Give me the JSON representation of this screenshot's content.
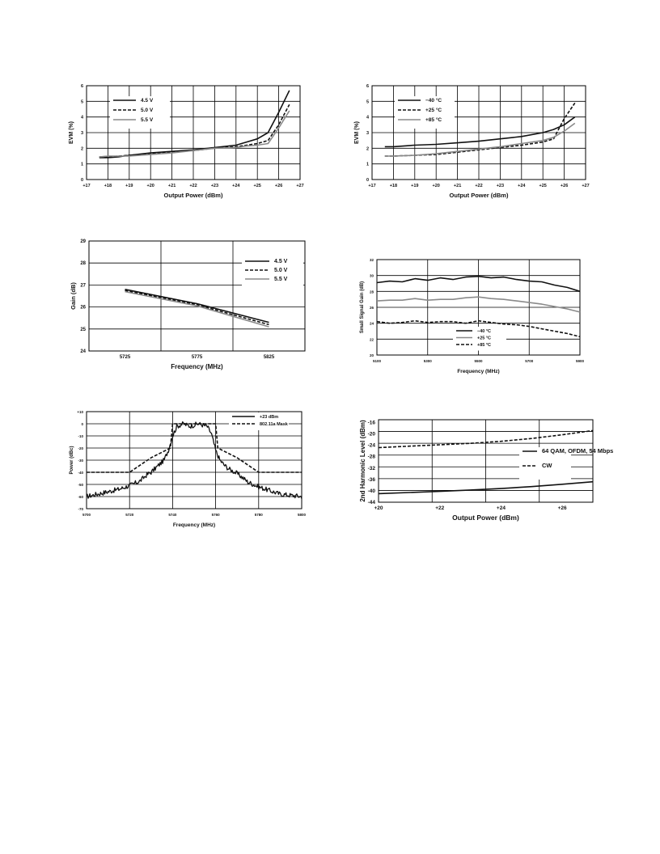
{
  "colors": {
    "black": "#111111",
    "gray": "#8a8a8a",
    "grid": "#000000"
  },
  "charts": [
    {
      "type": "line",
      "xlabel": "Output Power (dBm)",
      "ylabel": "EVM (%)",
      "xlim": [
        17,
        27
      ],
      "ylim": [
        0,
        6
      ],
      "xticks": [
        "+17",
        "+18",
        "+19",
        "+20",
        "+21",
        "+22",
        "+23",
        "+24",
        "+25",
        "+26",
        "+27"
      ],
      "yticks": [
        "0",
        "1",
        "2",
        "3",
        "4",
        "5",
        "6"
      ],
      "legend_position": "upper-left",
      "series": [
        {
          "name": "4.5 V",
          "style": "solid",
          "color": "#111111",
          "x": [
            17.6,
            18.0,
            18.5,
            19.0,
            20.0,
            21.0,
            22.0,
            23.0,
            24.0,
            24.5,
            25.0,
            25.5,
            26.0,
            26.5
          ],
          "y": [
            1.4,
            1.4,
            1.45,
            1.55,
            1.7,
            1.8,
            1.9,
            2.05,
            2.2,
            2.4,
            2.6,
            3.0,
            4.3,
            5.7
          ]
        },
        {
          "name": "5.0 V",
          "style": "dashed",
          "color": "#111111",
          "x": [
            17.6,
            18.0,
            18.5,
            19.0,
            20.0,
            21.0,
            22.0,
            23.0,
            24.0,
            24.5,
            25.0,
            25.5,
            26.0,
            26.5
          ],
          "y": [
            1.45,
            1.45,
            1.5,
            1.55,
            1.65,
            1.75,
            1.85,
            2.0,
            2.1,
            2.2,
            2.3,
            2.5,
            3.5,
            4.8
          ]
        },
        {
          "name": "5.5 V",
          "style": "solid",
          "color": "#8a8a8a",
          "x": [
            17.6,
            18.0,
            18.5,
            19.0,
            20.0,
            21.0,
            22.0,
            23.0,
            24.0,
            24.5,
            25.0,
            25.5,
            26.0,
            26.5
          ],
          "y": [
            1.45,
            1.5,
            1.5,
            1.5,
            1.6,
            1.7,
            1.85,
            2.0,
            2.05,
            2.15,
            2.2,
            2.3,
            3.3,
            4.4
          ]
        }
      ]
    },
    {
      "type": "line",
      "xlabel": "Output Power (dBm)",
      "ylabel": "EVM (%)",
      "xlim": [
        17,
        27
      ],
      "ylim": [
        0,
        6
      ],
      "xticks": [
        "+17",
        "+18",
        "+19",
        "+20",
        "+21",
        "+22",
        "+23",
        "+24",
        "+25",
        "+26",
        "+27"
      ],
      "yticks": [
        "0",
        "1",
        "2",
        "3",
        "4",
        "5",
        "6"
      ],
      "legend_position": "upper-left",
      "series": [
        {
          "name": "−40 °C",
          "style": "solid",
          "color": "#111111",
          "x": [
            17.6,
            18.0,
            19.0,
            20.0,
            21.0,
            22.0,
            23.0,
            24.0,
            25.0,
            25.5,
            26.0,
            26.5
          ],
          "y": [
            2.1,
            2.1,
            2.2,
            2.25,
            2.35,
            2.45,
            2.6,
            2.75,
            3.0,
            3.2,
            3.5,
            4.0
          ]
        },
        {
          "name": "+25 °C",
          "style": "dashed",
          "color": "#111111",
          "x": [
            17.6,
            18.0,
            19.0,
            20.0,
            21.0,
            22.0,
            23.0,
            24.0,
            25.0,
            25.5,
            26.0,
            26.5
          ],
          "y": [
            1.5,
            1.5,
            1.55,
            1.6,
            1.75,
            1.9,
            2.05,
            2.2,
            2.4,
            2.6,
            3.9,
            4.9
          ]
        },
        {
          "name": "+85 °C",
          "style": "solid",
          "color": "#8a8a8a",
          "x": [
            17.6,
            18.0,
            19.0,
            20.0,
            21.0,
            22.0,
            23.0,
            24.0,
            25.0,
            25.5,
            26.0,
            26.5
          ],
          "y": [
            1.5,
            1.5,
            1.55,
            1.65,
            1.8,
            1.95,
            2.1,
            2.3,
            2.5,
            2.7,
            3.1,
            3.6
          ]
        }
      ]
    },
    {
      "type": "line",
      "xlabel": "Frequency (MHz)",
      "ylabel": "Gain (dB)",
      "xlim": [
        5700,
        5850
      ],
      "ylim": [
        24,
        29
      ],
      "xticks": [
        "5725",
        "5775",
        "5825"
      ],
      "xtick_values": [
        5725,
        5775,
        5825
      ],
      "yticks": [
        "24",
        "25",
        "26",
        "27",
        "28",
        "29"
      ],
      "legend_position": "upper-right",
      "series": [
        {
          "name": "4.5 V",
          "style": "solid",
          "color": "#111111",
          "x": [
            5725,
            5775,
            5825
          ],
          "y": [
            26.8,
            26.15,
            25.3
          ]
        },
        {
          "name": "5.0 V",
          "style": "dashed",
          "color": "#111111",
          "x": [
            5725,
            5775,
            5825
          ],
          "y": [
            26.75,
            26.1,
            25.2
          ]
        },
        {
          "name": "5.5 V",
          "style": "solid",
          "color": "#8a8a8a",
          "x": [
            5725,
            5775,
            5825
          ],
          "y": [
            26.7,
            26.05,
            25.1
          ]
        }
      ]
    },
    {
      "type": "line",
      "xlabel": "Frequency (MHz)",
      "ylabel": "Small Signal Gain (dB)",
      "xlim": [
        5100,
        5900
      ],
      "ylim": [
        20,
        32
      ],
      "xticks": [
        "5100",
        "5300",
        "5500",
        "5700",
        "5900"
      ],
      "yticks": [
        "20",
        "22",
        "24",
        "26",
        "28",
        "30",
        "32"
      ],
      "legend_position": "bottom-center",
      "series": [
        {
          "name": "−40 °C",
          "style": "solid",
          "color": "#111111",
          "x": [
            5100,
            5150,
            5200,
            5250,
            5300,
            5350,
            5400,
            5450,
            5500,
            5550,
            5600,
            5650,
            5700,
            5750,
            5800,
            5850,
            5900
          ],
          "y": [
            29.1,
            29.3,
            29.2,
            29.6,
            29.4,
            29.7,
            29.5,
            29.8,
            29.9,
            29.7,
            29.8,
            29.5,
            29.3,
            29.2,
            28.8,
            28.5,
            28.0
          ]
        },
        {
          "name": "+25 °C",
          "style": "solid",
          "color": "#8a8a8a",
          "x": [
            5100,
            5150,
            5200,
            5250,
            5300,
            5350,
            5400,
            5450,
            5500,
            5550,
            5600,
            5650,
            5700,
            5750,
            5800,
            5850,
            5900
          ],
          "y": [
            26.8,
            26.9,
            26.9,
            27.1,
            26.9,
            27.0,
            27.0,
            27.2,
            27.3,
            27.1,
            27.0,
            26.8,
            26.6,
            26.4,
            26.1,
            25.8,
            25.4
          ]
        },
        {
          "name": "+85 °C",
          "style": "dashed",
          "color": "#111111",
          "x": [
            5100,
            5150,
            5200,
            5250,
            5300,
            5350,
            5400,
            5450,
            5500,
            5550,
            5600,
            5650,
            5700,
            5750,
            5800,
            5850,
            5900
          ],
          "y": [
            24.2,
            24.0,
            24.1,
            24.3,
            24.1,
            24.2,
            24.2,
            24.0,
            24.3,
            24.1,
            23.9,
            23.8,
            23.6,
            23.3,
            23.0,
            22.7,
            22.3
          ]
        }
      ]
    },
    {
      "type": "line",
      "xlabel": "Frequency (MHz)",
      "ylabel": "Power (dBc)",
      "xlim": [
        5700,
        5800
      ],
      "ylim": [
        -70,
        10
      ],
      "xticks": [
        "5700",
        "5720",
        "5740",
        "5760",
        "5780",
        "5800"
      ],
      "yticks": [
        "-70",
        "-60",
        "-50",
        "-40",
        "-30",
        "-20",
        "-10",
        "0",
        "+10"
      ],
      "legend_position": "upper-right",
      "series": [
        {
          "name": "+23 dBm",
          "style": "solid",
          "color": "#111111",
          "noisy": true,
          "x": [
            5700,
            5705,
            5710,
            5715,
            5720,
            5725,
            5728,
            5730,
            5733,
            5736,
            5738,
            5740,
            5742,
            5745,
            5748,
            5750,
            5752,
            5754,
            5756,
            5758,
            5760,
            5762,
            5764,
            5766,
            5770,
            5773,
            5775,
            5780,
            5785,
            5790,
            5795,
            5800
          ],
          "y": [
            -60,
            -58,
            -56,
            -54,
            -51,
            -47,
            -42,
            -40,
            -35,
            -30,
            -22,
            -10,
            -2,
            0,
            -2,
            -1,
            0,
            -1,
            -2,
            -8,
            -22,
            -30,
            -34,
            -37,
            -41,
            -45,
            -48,
            -52,
            -55,
            -58,
            -59,
            -60
          ]
        },
        {
          "name": "802.11a Mask",
          "style": "dashed",
          "color": "#111111",
          "noisy": false,
          "x": [
            5700,
            5720,
            5730,
            5739,
            5740,
            5741,
            5759,
            5760,
            5761,
            5770,
            5780,
            5800
          ],
          "y": [
            -40,
            -40,
            -28,
            -20,
            0,
            0,
            0,
            0,
            -20,
            -28,
            -40,
            -40
          ]
        }
      ]
    },
    {
      "type": "line",
      "xlabel": "Output Power (dBm)",
      "ylabel": "2nd Harmonic Level (dBm)",
      "xlim": [
        20,
        27
      ],
      "ylim": [
        -44,
        -15
      ],
      "xticks": [
        "+20",
        "+22",
        "+24",
        "+26"
      ],
      "xtick_values": [
        20,
        22,
        24,
        26
      ],
      "yticks": [
        "-44",
        "-40",
        "-36",
        "-32",
        "-28",
        "-24",
        "-20",
        "-16"
      ],
      "ytick_values": [
        -44,
        -40,
        -36,
        -32,
        -28,
        -24,
        -20,
        -16
      ],
      "legend_position": "right",
      "series": [
        {
          "name": "64 QAM, OFDM, 54 Mbps",
          "style": "solid",
          "color": "#111111",
          "x": [
            20,
            21,
            22,
            23,
            24,
            25,
            26,
            27
          ],
          "y": [
            -41.0,
            -40.6,
            -40.2,
            -39.7,
            -39.2,
            -38.5,
            -37.7,
            -36.8
          ]
        },
        {
          "name": "CW",
          "style": "dashed",
          "color": "#111111",
          "x": [
            20,
            21,
            22,
            23,
            24,
            25,
            26,
            27
          ],
          "y": [
            -24.8,
            -24.3,
            -23.8,
            -23.3,
            -22.6,
            -21.6,
            -20.3,
            -18.8
          ]
        }
      ]
    }
  ]
}
